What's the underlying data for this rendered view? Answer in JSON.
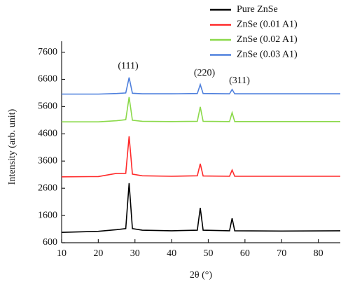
{
  "chart_data": {
    "type": "line",
    "x_label": "2θ (°)",
    "y_label": "Intensity (arb. unit)",
    "x": [
      10,
      20,
      25,
      27.5,
      28.4,
      29.3,
      32,
      40,
      47,
      47.8,
      48.6,
      55.8,
      56.5,
      57.2,
      70,
      86
    ],
    "series": [
      {
        "name": "Pure ZnSe",
        "color": "#000000",
        "values": [
          980,
          1020,
          1080,
          1120,
          2790,
          1120,
          1060,
          1040,
          1060,
          1880,
          1060,
          1040,
          1500,
          1040,
          1030,
          1040
        ]
      },
      {
        "name": "ZnSe (0.01 A1)",
        "color": "#ff2a2a",
        "values": [
          3020,
          3030,
          3150,
          3150,
          4510,
          3120,
          3060,
          3040,
          3060,
          3500,
          3050,
          3040,
          3270,
          3040,
          3040,
          3040
        ]
      },
      {
        "name": "ZnSe (0.02 A1)",
        "color": "#8bd94a",
        "values": [
          5040,
          5040,
          5080,
          5120,
          5950,
          5100,
          5060,
          5050,
          5060,
          5590,
          5060,
          5050,
          5380,
          5050,
          5050,
          5050
        ]
      },
      {
        "name": "ZnSe (0.03 A1)",
        "color": "#4f80dd",
        "values": [
          6060,
          6060,
          6080,
          6100,
          6670,
          6090,
          6070,
          6070,
          6080,
          6410,
          6080,
          6070,
          6230,
          6070,
          6070,
          6070
        ]
      }
    ],
    "annotations": [
      "(111)",
      "(220)",
      "(311)"
    ],
    "xlim": [
      10,
      86
    ],
    "xticks": [
      10,
      20,
      30,
      40,
      50,
      60,
      70,
      80
    ],
    "ylim": [
      600,
      8000
    ],
    "yticks": [
      600,
      1600,
      2600,
      3600,
      4600,
      5600,
      6600,
      7600
    ],
    "legend": "top-right"
  }
}
